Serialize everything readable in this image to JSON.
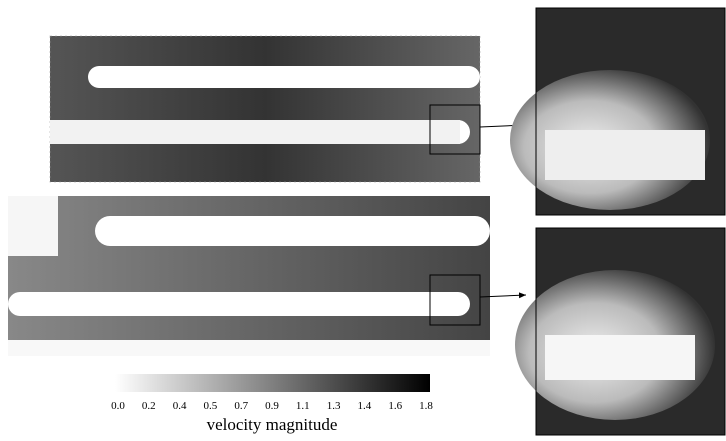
{
  "colorbar": {
    "label": "velocity magnitude",
    "ticks": [
      "0.0",
      "0.2",
      "0.4",
      "0.5",
      "0.7",
      "0.9",
      "1.1",
      "1.3",
      "1.4",
      "1.6",
      "1.8"
    ]
  }
}
